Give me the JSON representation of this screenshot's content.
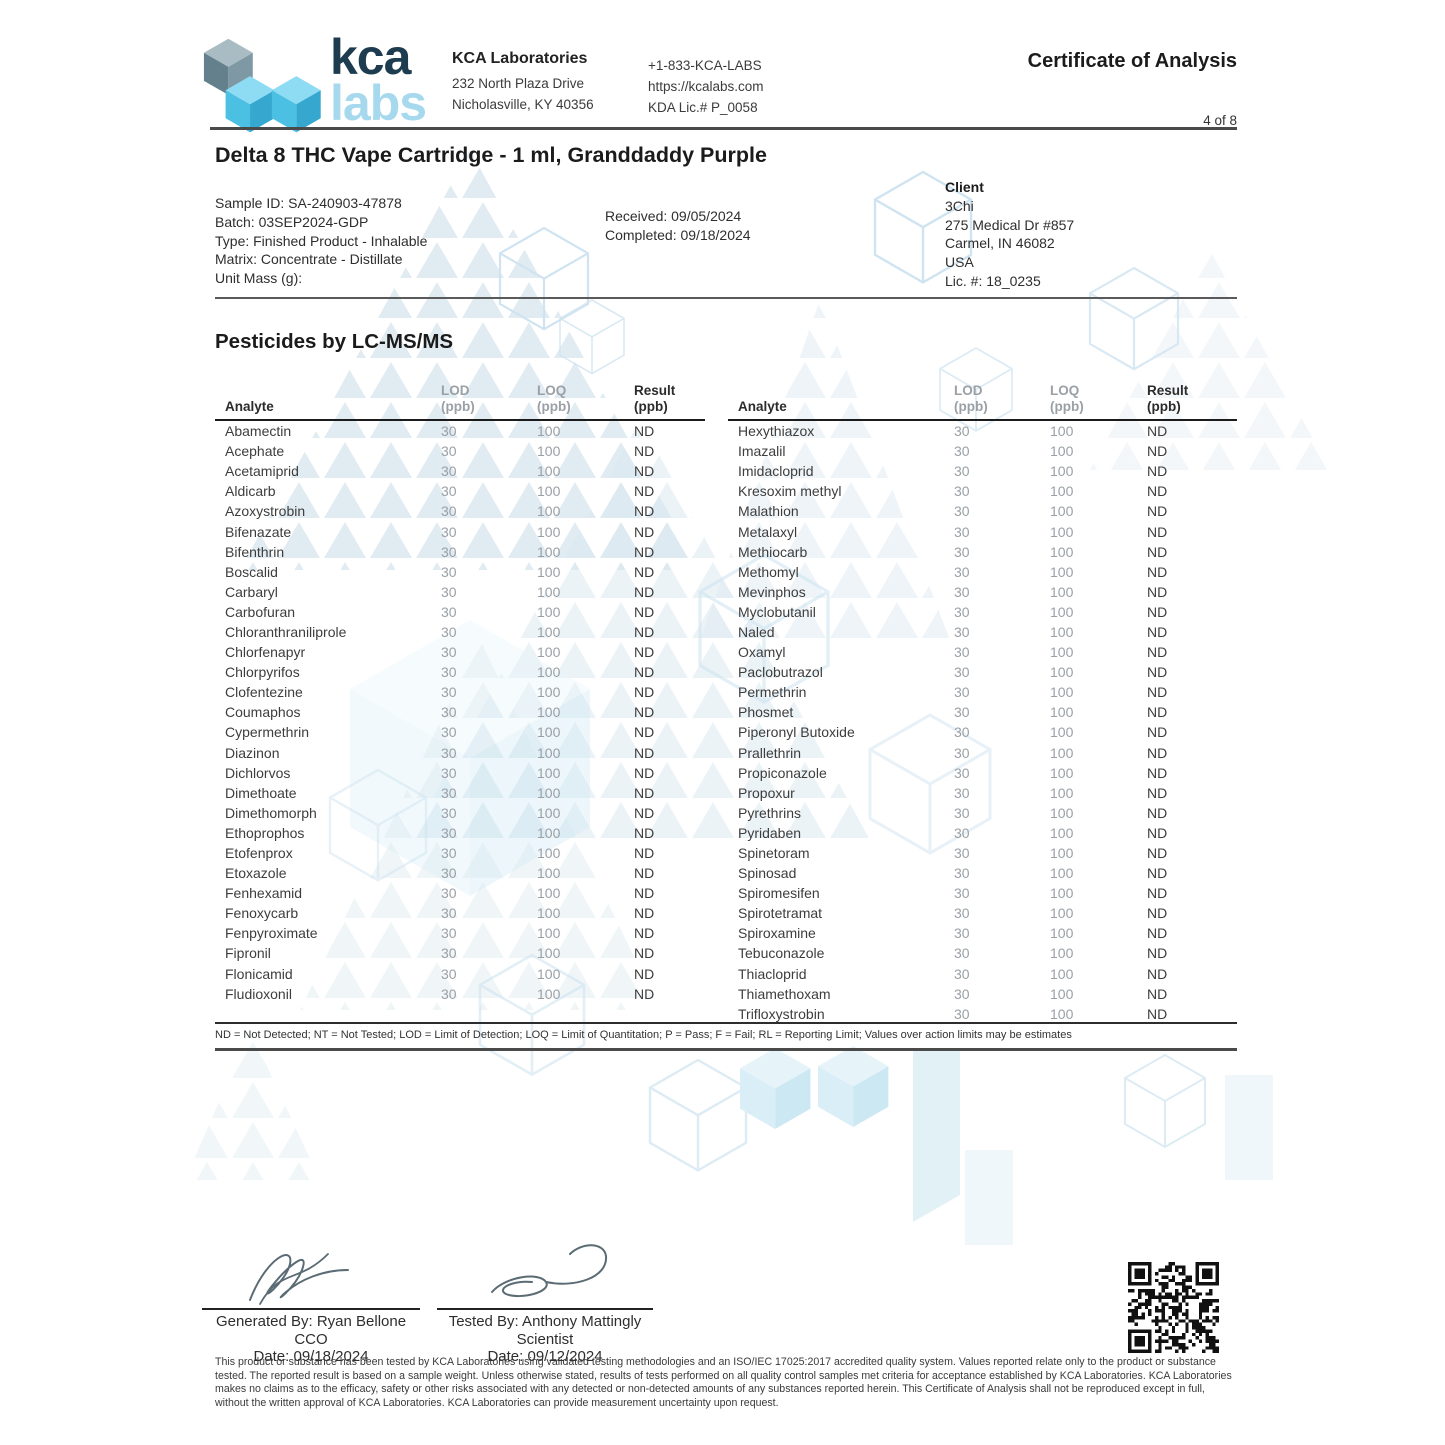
{
  "header": {
    "logo_text_top": "kca",
    "logo_text_bottom": "labs",
    "lab_name": "KCA Laboratories",
    "address_line1": "232 North Plaza Drive",
    "address_line2": "Nicholasville, KY 40356",
    "phone": "+1-833-KCA-LABS",
    "website": "https://kcalabs.com",
    "license": "KDA Lic.# P_0058",
    "doc_title": "Certificate of Analysis",
    "page_number": "4 of 8"
  },
  "product": {
    "title": "Delta 8 THC Vape Cartridge - 1 ml, Granddaddy Purple"
  },
  "sample": {
    "lines": [
      "Sample ID: SA-240903-47878",
      "Batch: 03SEP2024-GDP",
      "Type: Finished Product - Inhalable",
      "Matrix: Concentrate - Distillate",
      "Unit Mass (g):"
    ]
  },
  "dates": {
    "received": "Received: 09/05/2024",
    "completed": "Completed: 09/18/2024"
  },
  "client": {
    "heading": "Client",
    "lines": [
      "3Chi",
      "275 Medical Dr #857",
      "Carmel, IN 46082",
      "USA",
      "Lic. #: 18_0235"
    ]
  },
  "section": {
    "title": "Pesticides by LC-MS/MS"
  },
  "table": {
    "headers": {
      "analyte": "Analyte",
      "lod": "LOD",
      "loq": "LOQ",
      "result": "Result",
      "unit": "(ppb)"
    },
    "left_rows": [
      {
        "a": "Abamectin",
        "lod": "30",
        "loq": "100",
        "r": "ND"
      },
      {
        "a": "Acephate",
        "lod": "30",
        "loq": "100",
        "r": "ND"
      },
      {
        "a": "Acetamiprid",
        "lod": "30",
        "loq": "100",
        "r": "ND"
      },
      {
        "a": "Aldicarb",
        "lod": "30",
        "loq": "100",
        "r": "ND"
      },
      {
        "a": "Azoxystrobin",
        "lod": "30",
        "loq": "100",
        "r": "ND"
      },
      {
        "a": "Bifenazate",
        "lod": "30",
        "loq": "100",
        "r": "ND"
      },
      {
        "a": "Bifenthrin",
        "lod": "30",
        "loq": "100",
        "r": "ND"
      },
      {
        "a": "Boscalid",
        "lod": "30",
        "loq": "100",
        "r": "ND"
      },
      {
        "a": "Carbaryl",
        "lod": "30",
        "loq": "100",
        "r": "ND"
      },
      {
        "a": "Carbofuran",
        "lod": "30",
        "loq": "100",
        "r": "ND"
      },
      {
        "a": "Chloranthraniliprole",
        "lod": "30",
        "loq": "100",
        "r": "ND"
      },
      {
        "a": "Chlorfenapyr",
        "lod": "30",
        "loq": "100",
        "r": "ND"
      },
      {
        "a": "Chlorpyrifos",
        "lod": "30",
        "loq": "100",
        "r": "ND"
      },
      {
        "a": "Clofentezine",
        "lod": "30",
        "loq": "100",
        "r": "ND"
      },
      {
        "a": "Coumaphos",
        "lod": "30",
        "loq": "100",
        "r": "ND"
      },
      {
        "a": "Cypermethrin",
        "lod": "30",
        "loq": "100",
        "r": "ND"
      },
      {
        "a": "Diazinon",
        "lod": "30",
        "loq": "100",
        "r": "ND"
      },
      {
        "a": "Dichlorvos",
        "lod": "30",
        "loq": "100",
        "r": "ND"
      },
      {
        "a": "Dimethoate",
        "lod": "30",
        "loq": "100",
        "r": "ND"
      },
      {
        "a": "Dimethomorph",
        "lod": "30",
        "loq": "100",
        "r": "ND"
      },
      {
        "a": "Ethoprophos",
        "lod": "30",
        "loq": "100",
        "r": "ND"
      },
      {
        "a": "Etofenprox",
        "lod": "30",
        "loq": "100",
        "r": "ND"
      },
      {
        "a": "Etoxazole",
        "lod": "30",
        "loq": "100",
        "r": "ND"
      },
      {
        "a": "Fenhexamid",
        "lod": "30",
        "loq": "100",
        "r": "ND"
      },
      {
        "a": "Fenoxycarb",
        "lod": "30",
        "loq": "100",
        "r": "ND"
      },
      {
        "a": "Fenpyroximate",
        "lod": "30",
        "loq": "100",
        "r": "ND"
      },
      {
        "a": "Fipronil",
        "lod": "30",
        "loq": "100",
        "r": "ND"
      },
      {
        "a": "Flonicamid",
        "lod": "30",
        "loq": "100",
        "r": "ND"
      },
      {
        "a": "Fludioxonil",
        "lod": "30",
        "loq": "100",
        "r": "ND"
      }
    ],
    "right_rows": [
      {
        "a": "Hexythiazox",
        "lod": "30",
        "loq": "100",
        "r": "ND"
      },
      {
        "a": "Imazalil",
        "lod": "30",
        "loq": "100",
        "r": "ND"
      },
      {
        "a": "Imidacloprid",
        "lod": "30",
        "loq": "100",
        "r": "ND"
      },
      {
        "a": "Kresoxim methyl",
        "lod": "30",
        "loq": "100",
        "r": "ND"
      },
      {
        "a": "Malathion",
        "lod": "30",
        "loq": "100",
        "r": "ND"
      },
      {
        "a": "Metalaxyl",
        "lod": "30",
        "loq": "100",
        "r": "ND"
      },
      {
        "a": "Methiocarb",
        "lod": "30",
        "loq": "100",
        "r": "ND"
      },
      {
        "a": "Methomyl",
        "lod": "30",
        "loq": "100",
        "r": "ND"
      },
      {
        "a": "Mevinphos",
        "lod": "30",
        "loq": "100",
        "r": "ND"
      },
      {
        "a": "Myclobutanil",
        "lod": "30",
        "loq": "100",
        "r": "ND"
      },
      {
        "a": "Naled",
        "lod": "30",
        "loq": "100",
        "r": "ND"
      },
      {
        "a": "Oxamyl",
        "lod": "30",
        "loq": "100",
        "r": "ND"
      },
      {
        "a": "Paclobutrazol",
        "lod": "30",
        "loq": "100",
        "r": "ND"
      },
      {
        "a": "Permethrin",
        "lod": "30",
        "loq": "100",
        "r": "ND"
      },
      {
        "a": "Phosmet",
        "lod": "30",
        "loq": "100",
        "r": "ND"
      },
      {
        "a": "Piperonyl Butoxide",
        "lod": "30",
        "loq": "100",
        "r": "ND"
      },
      {
        "a": "Prallethrin",
        "lod": "30",
        "loq": "100",
        "r": "ND"
      },
      {
        "a": "Propiconazole",
        "lod": "30",
        "loq": "100",
        "r": "ND"
      },
      {
        "a": "Propoxur",
        "lod": "30",
        "loq": "100",
        "r": "ND"
      },
      {
        "a": "Pyrethrins",
        "lod": "30",
        "loq": "100",
        "r": "ND"
      },
      {
        "a": "Pyridaben",
        "lod": "30",
        "loq": "100",
        "r": "ND"
      },
      {
        "a": "Spinetoram",
        "lod": "30",
        "loq": "100",
        "r": "ND"
      },
      {
        "a": "Spinosad",
        "lod": "30",
        "loq": "100",
        "r": "ND"
      },
      {
        "a": "Spiromesifen",
        "lod": "30",
        "loq": "100",
        "r": "ND"
      },
      {
        "a": "Spirotetramat",
        "lod": "30",
        "loq": "100",
        "r": "ND"
      },
      {
        "a": "Spiroxamine",
        "lod": "30",
        "loq": "100",
        "r": "ND"
      },
      {
        "a": "Tebuconazole",
        "lod": "30",
        "loq": "100",
        "r": "ND"
      },
      {
        "a": "Thiacloprid",
        "lod": "30",
        "loq": "100",
        "r": "ND"
      },
      {
        "a": "Thiamethoxam",
        "lod": "30",
        "loq": "100",
        "r": "ND"
      },
      {
        "a": "Trifloxystrobin",
        "lod": "30",
        "loq": "100",
        "r": "ND"
      }
    ]
  },
  "footnote": "ND = Not Detected; NT = Not Tested; LOD = Limit of Detection; LOQ = Limit of Quantitation; P = Pass; F = Fail; RL = Reporting Limit; Values over action limits may be estimates",
  "signatures": [
    {
      "by": "Generated By: Ryan Bellone",
      "role": "CCO",
      "date": "Date: 09/18/2024"
    },
    {
      "by": "Tested By: Anthony Mattingly",
      "role": "Scientist",
      "date": "Date: 09/12/2024"
    }
  ],
  "disclaimer": "This product or substance has been tested by KCA Laboratories using validated testing methodologies and an ISO/IEC 17025:2017 accredited quality system. Values reported relate only to the product or substance tested. The reported result is based on a sample weight. Unless otherwise stated, results of tests performed on all quality control samples met criteria for acceptance established by KCA Laboratories. KCA Laboratories makes no claims as to the efficacy, safety or other risks associated with any detected or non-detected amounts of any substances reported herein. This Certificate of Analysis shall not be reproduced except in full, without the written approval of KCA Laboratories. KCA Laboratories can provide measurement uncertainty upon request.",
  "colors": {
    "brand_dark": "#1e3c50",
    "brand_light": "#a6d9ee",
    "accent_blue": "#54c0e4",
    "watermark": "#dde9f0"
  }
}
